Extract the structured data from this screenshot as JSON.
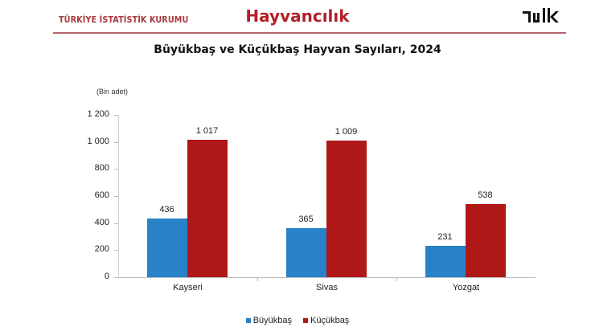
{
  "header": {
    "organization": "TÜRKİYE İSTATİSTİK KURUMU",
    "section_title": "Hayvancılık",
    "logo_text": "TÜİK"
  },
  "colors": {
    "header_red": "#b22028",
    "rule": "#b5656b",
    "buyukbas": "#2882c8",
    "kucukbas": "#b01818"
  },
  "chart_data": {
    "type": "bar",
    "title": "Büyükbaş ve Küçükbaş Hayvan Sayıları, 2024",
    "unit_label": "(Bin adet)",
    "xlabel": "",
    "ylabel": "(Bin adet)",
    "ylim": [
      0,
      1200
    ],
    "yticks": [
      0,
      200,
      400,
      600,
      800,
      1000,
      1200
    ],
    "ytick_labels": [
      "0",
      "200",
      "400",
      "600",
      "800",
      "1 000",
      "1 200"
    ],
    "grid": false,
    "legend_position": "bottom",
    "categories": [
      "Kayseri",
      "Sivas",
      "Yozgat"
    ],
    "series": [
      {
        "name": "Büyükbaş",
        "color": "#2882c8",
        "values": [
          436,
          365,
          231
        ],
        "labels": [
          "436",
          "365",
          "231"
        ]
      },
      {
        "name": "Küçükbaş",
        "color": "#b01818",
        "values": [
          1017,
          1009,
          538
        ],
        "labels": [
          "1 017",
          "1 009",
          "538"
        ]
      }
    ]
  }
}
